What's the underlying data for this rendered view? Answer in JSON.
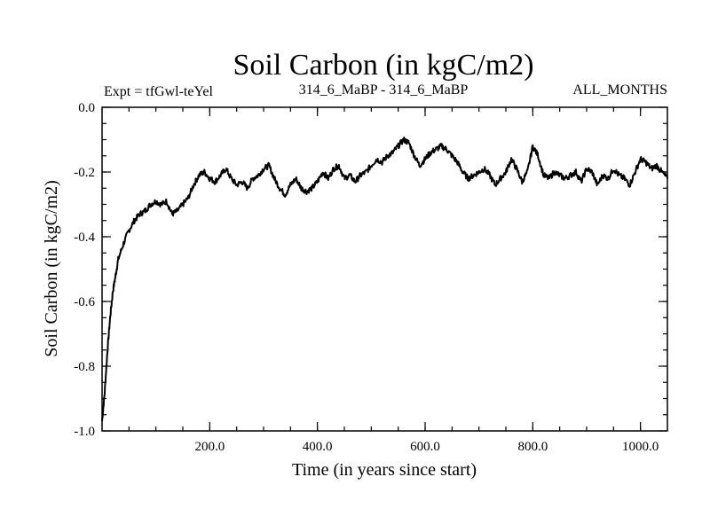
{
  "chart_data": {
    "type": "line",
    "title": "Soil Carbon (in kgC/m2)",
    "subtitle_left": "Expt = tfGwl-teYel",
    "subtitle_center": "314_6_MaBP - 314_6_MaBP",
    "subtitle_right": "ALL_MONTHS",
    "xlabel": "Time (in years since start)",
    "ylabel": "Soil Carbon (in kgC/m2)",
    "xlim": [
      0,
      1050
    ],
    "ylim": [
      -1.0,
      0.0
    ],
    "x_ticks": [
      {
        "value": 200,
        "label": "200.0"
      },
      {
        "value": 400,
        "label": "400.0"
      },
      {
        "value": 600,
        "label": "600.0"
      },
      {
        "value": 800,
        "label": "800.0"
      },
      {
        "value": 1000,
        "label": "1000.0"
      }
    ],
    "y_ticks": [
      {
        "value": 0.0,
        "label": "0.0"
      },
      {
        "value": -0.2,
        "label": "-0.2"
      },
      {
        "value": -0.4,
        "label": "-0.4"
      },
      {
        "value": -0.6,
        "label": "-0.6"
      },
      {
        "value": -0.8,
        "label": "-0.8"
      },
      {
        "value": -1.0,
        "label": "-1.0"
      }
    ],
    "grid": false,
    "series": [
      {
        "name": "Soil Carbon",
        "color": "#000000",
        "x": [
          0,
          5,
          10,
          15,
          20,
          25,
          30,
          40,
          50,
          60,
          70,
          80,
          90,
          100,
          110,
          120,
          130,
          140,
          150,
          160,
          170,
          180,
          190,
          200,
          210,
          220,
          230,
          240,
          250,
          260,
          270,
          280,
          290,
          300,
          310,
          320,
          330,
          340,
          350,
          360,
          370,
          380,
          390,
          400,
          410,
          420,
          430,
          440,
          450,
          460,
          470,
          480,
          490,
          500,
          510,
          520,
          530,
          540,
          550,
          560,
          570,
          580,
          590,
          600,
          610,
          620,
          630,
          640,
          650,
          660,
          670,
          680,
          690,
          700,
          710,
          720,
          730,
          740,
          750,
          760,
          770,
          780,
          790,
          800,
          810,
          820,
          830,
          840,
          850,
          860,
          870,
          880,
          890,
          900,
          910,
          920,
          930,
          940,
          950,
          960,
          970,
          980,
          990,
          1000,
          1010,
          1020,
          1030,
          1040,
          1050
        ],
        "values": [
          -0.97,
          -0.88,
          -0.75,
          -0.65,
          -0.57,
          -0.52,
          -0.47,
          -0.42,
          -0.38,
          -0.35,
          -0.33,
          -0.32,
          -0.3,
          -0.29,
          -0.3,
          -0.29,
          -0.33,
          -0.32,
          -0.3,
          -0.28,
          -0.24,
          -0.21,
          -0.2,
          -0.22,
          -0.23,
          -0.21,
          -0.19,
          -0.22,
          -0.24,
          -0.23,
          -0.25,
          -0.22,
          -0.21,
          -0.19,
          -0.18,
          -0.22,
          -0.25,
          -0.27,
          -0.24,
          -0.22,
          -0.25,
          -0.26,
          -0.25,
          -0.23,
          -0.2,
          -0.22,
          -0.19,
          -0.18,
          -0.22,
          -0.21,
          -0.23,
          -0.21,
          -0.2,
          -0.18,
          -0.16,
          -0.17,
          -0.15,
          -0.14,
          -0.12,
          -0.1,
          -0.11,
          -0.15,
          -0.18,
          -0.16,
          -0.14,
          -0.13,
          -0.12,
          -0.13,
          -0.15,
          -0.17,
          -0.2,
          -0.22,
          -0.21,
          -0.2,
          -0.19,
          -0.21,
          -0.24,
          -0.22,
          -0.2,
          -0.16,
          -0.19,
          -0.23,
          -0.2,
          -0.12,
          -0.15,
          -0.21,
          -0.22,
          -0.2,
          -0.21,
          -0.22,
          -0.21,
          -0.2,
          -0.23,
          -0.19,
          -0.2,
          -0.24,
          -0.21,
          -0.22,
          -0.19,
          -0.21,
          -0.22,
          -0.24,
          -0.2,
          -0.16,
          -0.17,
          -0.19,
          -0.18,
          -0.2,
          -0.22
        ]
      }
    ]
  }
}
